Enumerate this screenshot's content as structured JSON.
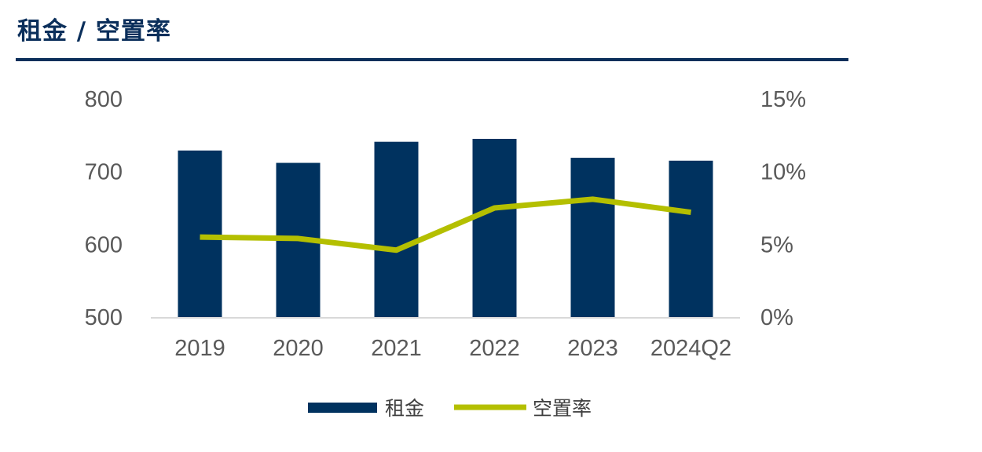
{
  "page": {
    "title": "租金 / 空置率"
  },
  "chart_data": {
    "type": "bar",
    "categories": [
      "2019",
      "2020",
      "2021",
      "2022",
      "2023",
      "2024Q2"
    ],
    "series": [
      {
        "name": "租金",
        "type": "bar",
        "axis": "left",
        "color": "#00325f",
        "values": [
          729,
          712,
          741,
          745,
          719,
          715
        ]
      },
      {
        "name": "空置率",
        "type": "line",
        "axis": "right",
        "color": "#b4bf00",
        "values": [
          5.5,
          5.4,
          4.6,
          7.5,
          8.1,
          7.2
        ]
      }
    ],
    "y_left": {
      "range": [
        500,
        800
      ],
      "ticks": [
        "500",
        "600",
        "700",
        "800"
      ]
    },
    "y_right": {
      "range": [
        0,
        15
      ],
      "ticks": [
        "0%",
        "5%",
        "10%",
        "15%"
      ]
    },
    "grid": false,
    "legend_position": "bottom"
  }
}
